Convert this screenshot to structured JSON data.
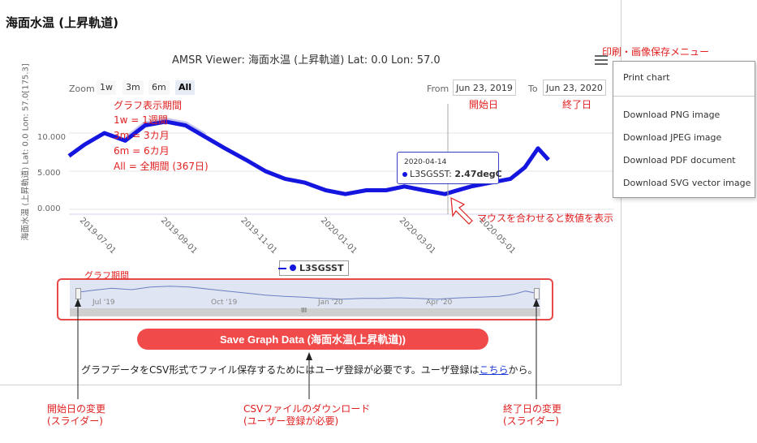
{
  "page": {
    "title": "海面水温 (上昇軌道)"
  },
  "chart_header": {
    "title": "AMSR Viewer: 海面水温 (上昇軌道) Lat: 0.0 Lon: 57.0",
    "y_axis_title": "海面水温 (上昇軌道) Lat: 0.0 Lon: 57.0[175.3]"
  },
  "zoom": {
    "label": "Zoom",
    "buttons": [
      "1w",
      "3m",
      "6m",
      "All"
    ],
    "active": "All"
  },
  "range": {
    "from_label": "From",
    "from_value": "Jun 23, 2019",
    "to_label": "To",
    "to_value": "Jun 23, 2020"
  },
  "y_ticks": [
    "10.000",
    "5.000",
    "0.000"
  ],
  "x_ticks": [
    "2019-07-01",
    "2019-09-01",
    "2019-11-01",
    "2020-01-01",
    "2020-03-01",
    "2020-05-01"
  ],
  "legend": {
    "series_name": "L3SGSST"
  },
  "navigator": {
    "ticks": [
      "Jul '19",
      "Oct '19",
      "Jan '20",
      "Apr '20"
    ],
    "scrollbar_grip": "III"
  },
  "tooltip": {
    "date": "2020-04-14",
    "series": "L3SGSST:",
    "value": "2.47degC"
  },
  "save_button": {
    "label": "Save Graph Data (海面水温(上昇軌道))"
  },
  "note": {
    "before": "グラフデータをCSV形式でファイル保存するためにはユーザ登録が必要です。ユーザ登録は",
    "link": "こちら",
    "after": "から。"
  },
  "export_menu": {
    "items": [
      "Print chart",
      "Download PNG image",
      "Download JPEG image",
      "Download PDF document",
      "Download SVG vector image"
    ]
  },
  "annotations": {
    "menu": "印刷・画像保存メニュー",
    "period_lines": [
      "グラフ表示期間",
      "1w = 1週間",
      "3m = 3カ月",
      "6m = 6カ月",
      "All = 全期間 (367日)"
    ],
    "start_date": "開始日",
    "end_date": "終了日",
    "hover": "マウスを合わせると数値を表示",
    "graph_period": "グラフ期間",
    "start_change": "開始日の変更\n(スライダー)",
    "csv_download": "CSVファイルのダウンロード\n(ユーザー登録が必要)",
    "end_change": "終了日の変更\n(スライダー)"
  },
  "colors": {
    "series": "#1515e0",
    "annotation": "#e02020",
    "button": "#f04a4a"
  },
  "chart_data": {
    "type": "line",
    "title": "AMSR Viewer: 海面水温 (上昇軌道) Lat: 0.0 Lon: 57.0",
    "ylabel": "海面水温 (上昇軌道) Lat: 0.0 Lon: 57.0[175.3]",
    "x_range": [
      "2019-06-23",
      "2020-06-23"
    ],
    "ylim": [
      -1,
      13
    ],
    "series": [
      {
        "name": "L3SGSST",
        "x": [
          "2019-06-23",
          "2019-07-05",
          "2019-07-20",
          "2019-08-05",
          "2019-08-20",
          "2019-09-05",
          "2019-09-20",
          "2019-10-05",
          "2019-10-20",
          "2019-11-05",
          "2019-11-20",
          "2019-12-05",
          "2019-12-20",
          "2020-01-05",
          "2020-01-20",
          "2020-02-05",
          "2020-02-20",
          "2020-03-05",
          "2020-03-20",
          "2020-04-05",
          "2020-04-14",
          "2020-04-25",
          "2020-05-10",
          "2020-05-25",
          "2020-06-05",
          "2020-06-15",
          "2020-06-23"
        ],
        "values": [
          7.0,
          8.5,
          10.0,
          9.0,
          11.0,
          11.5,
          11.0,
          9.5,
          8.0,
          6.5,
          5.0,
          4.0,
          3.5,
          2.5,
          2.0,
          2.5,
          2.5,
          3.0,
          2.5,
          2.0,
          2.47,
          3.0,
          3.5,
          4.0,
          5.5,
          8.0,
          6.5
        ]
      }
    ]
  }
}
